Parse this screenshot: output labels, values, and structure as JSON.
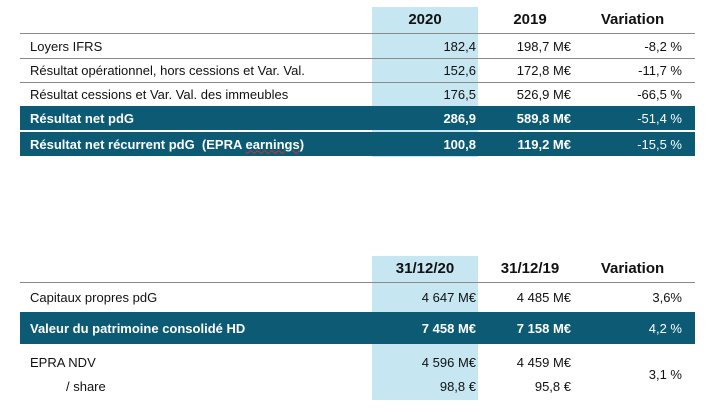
{
  "table1": {
    "headers": {
      "c1": "2020",
      "c2": "2019",
      "c3": "Variation"
    },
    "rows": [
      {
        "label": "Loyers IFRS",
        "v1": "182,4",
        "v2": "198,7 M€",
        "v3": "-8,2 %"
      },
      {
        "label": "Résultat opérationnel, hors cessions et Var. Val.",
        "v1": "152,6",
        "v2": "172,8 M€",
        "v3": "-11,7 %"
      },
      {
        "label": "Résultat cessions et Var. Val. des immeubles",
        "v1": "176,5",
        "v2": "526,9 M€",
        "v3": "-66,5 %"
      },
      {
        "label": "Résultat net pdG",
        "v1": "286,9",
        "v2": "589,8 M€",
        "v3": "-51,4 %"
      },
      {
        "label_main": "Résultat net récurrent pdG  (EPRA ",
        "label_wavy": "earnings",
        "label_end": ")",
        "v1": "100,8",
        "v2": "119,2 M€",
        "v3": "-15,5 %"
      }
    ]
  },
  "table2": {
    "headers": {
      "c1": "31/12/20",
      "c2": "31/12/19",
      "c3": "Variation"
    },
    "rows": [
      {
        "label": "Capitaux propres pdG",
        "v1": "4 647 M€",
        "v2": "4 485 M€",
        "v3": "3,6%"
      },
      {
        "label": "Valeur du patrimoine consolidé HD",
        "v1": "7 458 M€",
        "v2": "7 158 M€",
        "v3": "4,2 %"
      },
      {
        "label": "EPRA NDV",
        "v1": "4 596 M€",
        "v2": "4 459 M€",
        "v3": "3,1 %"
      },
      {
        "label": "/ share",
        "v1": "98,8 €",
        "v2": "95,8 €"
      }
    ]
  },
  "colors": {
    "highlight": "#c6e6f2",
    "dark_row": "#0c5a74"
  }
}
